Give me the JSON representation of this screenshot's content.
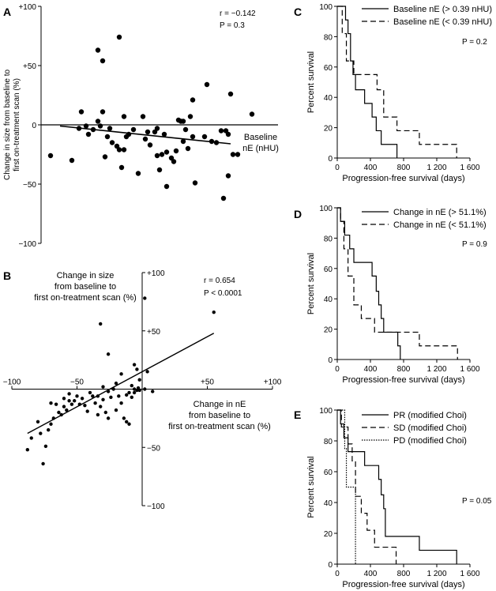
{
  "chart_data": [
    {
      "id": "A",
      "type": "scatter",
      "panel_label": "A",
      "title": "",
      "xlabel": "Baseline\nnE (nHU)",
      "ylabel": "Change in size from baseline to\nfirst on-treatment scan (%)",
      "yticks": [
        "+100",
        "+50",
        "0",
        "−50",
        "−100"
      ],
      "ylim": [
        -100,
        100
      ],
      "xlim": [
        0,
        10
      ],
      "annotations": [
        "r = −0.142",
        "P = 0.3"
      ],
      "regression": [
        [
          0.8,
          -1
        ],
        [
          8.0,
          -16
        ]
      ],
      "points": [
        [
          0.4,
          -26
        ],
        [
          1.3,
          -30
        ],
        [
          1.6,
          -3
        ],
        [
          1.7,
          11
        ],
        [
          1.9,
          -1
        ],
        [
          2.0,
          -8
        ],
        [
          2.2,
          -4
        ],
        [
          2.4,
          3
        ],
        [
          2.5,
          -1
        ],
        [
          2.6,
          11
        ],
        [
          2.7,
          -27
        ],
        [
          2.8,
          -10
        ],
        [
          2.9,
          -3
        ],
        [
          3.0,
          -15
        ],
        [
          3.2,
          -18
        ],
        [
          3.3,
          -21
        ],
        [
          3.4,
          -36
        ],
        [
          3.5,
          -21
        ],
        [
          3.6,
          -10
        ],
        [
          3.7,
          -8
        ],
        [
          3.5,
          7
        ],
        [
          3.9,
          -4
        ],
        [
          4.1,
          -41
        ],
        [
          4.3,
          7
        ],
        [
          4.4,
          -12
        ],
        [
          4.5,
          -6
        ],
        [
          4.6,
          -17
        ],
        [
          4.8,
          -6
        ],
        [
          4.9,
          -3
        ],
        [
          5.0,
          -38
        ],
        [
          5.1,
          -25
        ],
        [
          5.2,
          -8
        ],
        [
          5.3,
          -23
        ],
        [
          5.5,
          -28
        ],
        [
          5.6,
          -31
        ],
        [
          5.7,
          -22
        ],
        [
          5.9,
          3
        ],
        [
          6.0,
          -14
        ],
        [
          6.2,
          -20
        ],
        [
          6.4,
          -10
        ],
        [
          4.9,
          -26
        ],
        [
          5.3,
          -52
        ],
        [
          5.8,
          4
        ],
        [
          6.0,
          3
        ],
        [
          6.1,
          -4
        ],
        [
          6.3,
          7
        ],
        [
          6.4,
          21
        ],
        [
          6.5,
          -49
        ],
        [
          6.9,
          -10
        ],
        [
          7.0,
          34
        ],
        [
          7.2,
          -14
        ],
        [
          7.4,
          -15
        ],
        [
          7.6,
          -5
        ],
        [
          7.8,
          -5
        ],
        [
          7.9,
          -8
        ],
        [
          8.1,
          -25
        ],
        [
          8.3,
          -25
        ],
        [
          7.7,
          -62
        ],
        [
          7.9,
          -43
        ],
        [
          8.0,
          26
        ],
        [
          8.9,
          9
        ],
        [
          2.4,
          63
        ],
        [
          2.6,
          54
        ],
        [
          3.3,
          74
        ]
      ]
    },
    {
      "id": "B",
      "type": "scatter",
      "panel_label": "B",
      "title": "",
      "xlabel": "Change in nE\nfrom baseline to\nfirst on-treatment scan (%)",
      "ylabel": "Change in size\nfrom baseline to\nfirst on-treatment scan (%)",
      "xticks": [
        "−100",
        "−50",
        "+50",
        "+100"
      ],
      "yticks": [
        "+100",
        "+50",
        "−50",
        "−100"
      ],
      "xlim": [
        -100,
        100
      ],
      "ylim": [
        -100,
        100
      ],
      "annotations": [
        "r = 0.654",
        "P < 0.0001"
      ],
      "regression": [
        [
          -88,
          -38
        ],
        [
          55,
          48
        ]
      ],
      "points": [
        [
          -88,
          -52
        ],
        [
          -85,
          -42
        ],
        [
          -80,
          -28
        ],
        [
          -78,
          -38
        ],
        [
          -76,
          -64
        ],
        [
          -74,
          -49
        ],
        [
          -72,
          -35
        ],
        [
          -70,
          -30
        ],
        [
          -68,
          -25
        ],
        [
          -66,
          -13
        ],
        [
          -64,
          -20
        ],
        [
          -62,
          -22
        ],
        [
          -60,
          -15
        ],
        [
          -58,
          -18
        ],
        [
          -56,
          -10
        ],
        [
          -54,
          -13
        ],
        [
          -52,
          -10
        ],
        [
          -50,
          -6
        ],
        [
          -48,
          -13
        ],
        [
          -46,
          -8
        ],
        [
          -44,
          -14
        ],
        [
          -42,
          -19
        ],
        [
          -40,
          -3
        ],
        [
          -38,
          -6
        ],
        [
          -36,
          -12
        ],
        [
          -34,
          -22
        ],
        [
          -32,
          -15
        ],
        [
          -30,
          -9
        ],
        [
          -28,
          -20
        ],
        [
          -26,
          -25
        ],
        [
          -24,
          -7
        ],
        [
          -22,
          0
        ],
        [
          -20,
          -18
        ],
        [
          -18,
          -6
        ],
        [
          -16,
          -12
        ],
        [
          -14,
          -25
        ],
        [
          -12,
          -5
        ],
        [
          -10,
          -3
        ],
        [
          -8,
          -7
        ],
        [
          -6,
          -3
        ],
        [
          -4,
          -1
        ],
        [
          -3,
          1
        ],
        [
          -10,
          -30
        ],
        [
          -12,
          -28
        ],
        [
          -6,
          21
        ],
        [
          -2,
          8
        ],
        [
          -4,
          17
        ],
        [
          -16,
          13
        ],
        [
          -20,
          5
        ],
        [
          -8,
          3
        ],
        [
          -26,
          -2
        ],
        [
          -30,
          2
        ],
        [
          -34,
          -6
        ],
        [
          -56,
          -4
        ],
        [
          -60,
          -8
        ],
        [
          -70,
          -12
        ],
        [
          -26,
          30
        ],
        [
          -32,
          56
        ],
        [
          -6,
          0
        ],
        [
          -2,
          -1
        ],
        [
          2,
          0
        ],
        [
          4,
          15
        ],
        [
          8,
          -2
        ],
        [
          2,
          78
        ],
        [
          55,
          66
        ]
      ]
    },
    {
      "id": "C",
      "type": "line",
      "panel_label": "C",
      "title": "",
      "xlabel": "Progression-free survival (days)",
      "ylabel": "Percent survival",
      "xticks": [
        "0",
        "400",
        "800",
        "1 200",
        "1 600"
      ],
      "yticks": [
        "100",
        "80",
        "60",
        "40",
        "20",
        "0"
      ],
      "xlim": [
        0,
        1600
      ],
      "ylim": [
        0,
        100
      ],
      "annotation": "P = 0.2",
      "series": [
        {
          "name": "Baseline nE  (> 0.39 nHU)",
          "dash": "solid",
          "points": [
            [
              0,
              100
            ],
            [
              100,
              100
            ],
            [
              100,
              91
            ],
            [
              130,
              91
            ],
            [
              130,
              82
            ],
            [
              160,
              82
            ],
            [
              160,
              64
            ],
            [
              190,
              64
            ],
            [
              190,
              55
            ],
            [
              220,
              55
            ],
            [
              220,
              45
            ],
            [
              330,
              45
            ],
            [
              330,
              36
            ],
            [
              420,
              36
            ],
            [
              420,
              27
            ],
            [
              470,
              27
            ],
            [
              470,
              18
            ],
            [
              530,
              18
            ],
            [
              530,
              9
            ],
            [
              720,
              9
            ],
            [
              720,
              0
            ]
          ]
        },
        {
          "name": "Baseline nE  (< 0.39 nHU)",
          "dash": "dashed",
          "points": [
            [
              0,
              100
            ],
            [
              60,
              100
            ],
            [
              60,
              82
            ],
            [
              110,
              82
            ],
            [
              110,
              64
            ],
            [
              200,
              64
            ],
            [
              200,
              55
            ],
            [
              480,
              55
            ],
            [
              480,
              45
            ],
            [
              560,
              45
            ],
            [
              560,
              27
            ],
            [
              720,
              27
            ],
            [
              720,
              18
            ],
            [
              990,
              18
            ],
            [
              990,
              9
            ],
            [
              1440,
              9
            ],
            [
              1440,
              0
            ]
          ]
        }
      ]
    },
    {
      "id": "D",
      "type": "line",
      "panel_label": "D",
      "title": "",
      "xlabel": "Progression-free survival (days)",
      "ylabel": "Percent survival",
      "xticks": [
        "0",
        "400",
        "800",
        "1 200",
        "1 600"
      ],
      "yticks": [
        "100",
        "80",
        "60",
        "40",
        "20",
        "0"
      ],
      "xlim": [
        0,
        1600
      ],
      "ylim": [
        0,
        100
      ],
      "annotation": "P = 0.9",
      "series": [
        {
          "name": "Change in nE (> 51.1%)",
          "dash": "solid",
          "points": [
            [
              0,
              100
            ],
            [
              40,
              100
            ],
            [
              40,
              91
            ],
            [
              90,
              91
            ],
            [
              90,
              82
            ],
            [
              150,
              82
            ],
            [
              150,
              73
            ],
            [
              200,
              73
            ],
            [
              200,
              64
            ],
            [
              420,
              64
            ],
            [
              420,
              55
            ],
            [
              470,
              55
            ],
            [
              470,
              45
            ],
            [
              500,
              45
            ],
            [
              500,
              36
            ],
            [
              530,
              36
            ],
            [
              530,
              27
            ],
            [
              560,
              27
            ],
            [
              560,
              18
            ],
            [
              730,
              18
            ],
            [
              730,
              9
            ],
            [
              760,
              9
            ],
            [
              760,
              0
            ]
          ]
        },
        {
          "name": "Change in nE (< 51.1%)",
          "dash": "dashed",
          "points": [
            [
              0,
              100
            ],
            [
              40,
              100
            ],
            [
              40,
              91
            ],
            [
              80,
              91
            ],
            [
              80,
              73
            ],
            [
              130,
              73
            ],
            [
              130,
              55
            ],
            [
              200,
              55
            ],
            [
              200,
              36
            ],
            [
              290,
              36
            ],
            [
              290,
              27
            ],
            [
              450,
              27
            ],
            [
              450,
              18
            ],
            [
              990,
              18
            ],
            [
              990,
              9
            ],
            [
              1450,
              9
            ],
            [
              1450,
              0
            ]
          ]
        }
      ]
    },
    {
      "id": "E",
      "type": "line",
      "panel_label": "E",
      "title": "",
      "xlabel": "Progression-free survival (days)",
      "ylabel": "Percent survival",
      "xticks": [
        "0",
        "400",
        "800",
        "1 200",
        "1 600"
      ],
      "yticks": [
        "100",
        "80",
        "60",
        "40",
        "20",
        "0"
      ],
      "xlim": [
        0,
        1600
      ],
      "ylim": [
        0,
        100
      ],
      "annotation": "P = 0.05",
      "series": [
        {
          "name": "PR (modified Choi)",
          "dash": "solid",
          "points": [
            [
              0,
              100
            ],
            [
              40,
              100
            ],
            [
              40,
              91
            ],
            [
              80,
              91
            ],
            [
              80,
              82
            ],
            [
              130,
              82
            ],
            [
              130,
              73
            ],
            [
              330,
              73
            ],
            [
              330,
              64
            ],
            [
              500,
              64
            ],
            [
              500,
              55
            ],
            [
              530,
              55
            ],
            [
              530,
              45
            ],
            [
              560,
              45
            ],
            [
              560,
              36
            ],
            [
              580,
              36
            ],
            [
              580,
              18
            ],
            [
              730,
              18
            ],
            [
              730,
              18
            ],
            [
              990,
              18
            ],
            [
              990,
              9
            ],
            [
              1440,
              9
            ],
            [
              1440,
              0
            ]
          ]
        },
        {
          "name": "SD (modified Choi)",
          "dash": "dashed",
          "points": [
            [
              0,
              100
            ],
            [
              50,
              100
            ],
            [
              50,
              89
            ],
            [
              130,
              89
            ],
            [
              130,
              78
            ],
            [
              180,
              78
            ],
            [
              180,
              67
            ],
            [
              220,
              67
            ],
            [
              220,
              44
            ],
            [
              290,
              44
            ],
            [
              290,
              33
            ],
            [
              360,
              33
            ],
            [
              360,
              22
            ],
            [
              450,
              22
            ],
            [
              450,
              11
            ],
            [
              710,
              11
            ],
            [
              710,
              0
            ]
          ]
        },
        {
          "name": "PD (modified Choi)",
          "dash": "dotted",
          "points": [
            [
              0,
              100
            ],
            [
              90,
              100
            ],
            [
              90,
              75
            ],
            [
              110,
              75
            ],
            [
              110,
              50
            ],
            [
              220,
              50
            ],
            [
              220,
              0
            ]
          ]
        }
      ]
    }
  ]
}
